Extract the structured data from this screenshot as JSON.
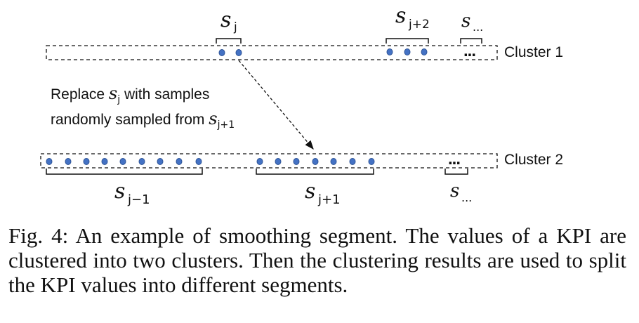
{
  "figure": {
    "clusters": [
      {
        "label": "Cluster 1"
      },
      {
        "label": "Cluster 2"
      }
    ],
    "segments_top": [
      {
        "symbol": "s",
        "subscript": "j"
      },
      {
        "symbol": "s",
        "subscript": "j+2"
      },
      {
        "symbol": "s",
        "subscript": "..."
      }
    ],
    "segments_bottom": [
      {
        "symbol": "s",
        "subscript": "j−1"
      },
      {
        "symbol": "s",
        "subscript": "j+1"
      },
      {
        "symbol": "s",
        "subscript": "..."
      }
    ],
    "ellipsis_top": "...",
    "ellipsis_bottom": "...",
    "annotation": {
      "line1_text": "Replace ",
      "line1_symbol": "s",
      "line1_sub": "j",
      "line1_tail": " with samples",
      "line2_text": "randomly sampled from ",
      "line2_symbol": "s",
      "line2_sub": "j+1"
    },
    "dot_color": "#4472c4"
  },
  "caption": "Fig. 4: An example of smoothing segment. The values of a KPI are clustered into two clusters. Then the clustering results are used to split the KPI values into different segments."
}
